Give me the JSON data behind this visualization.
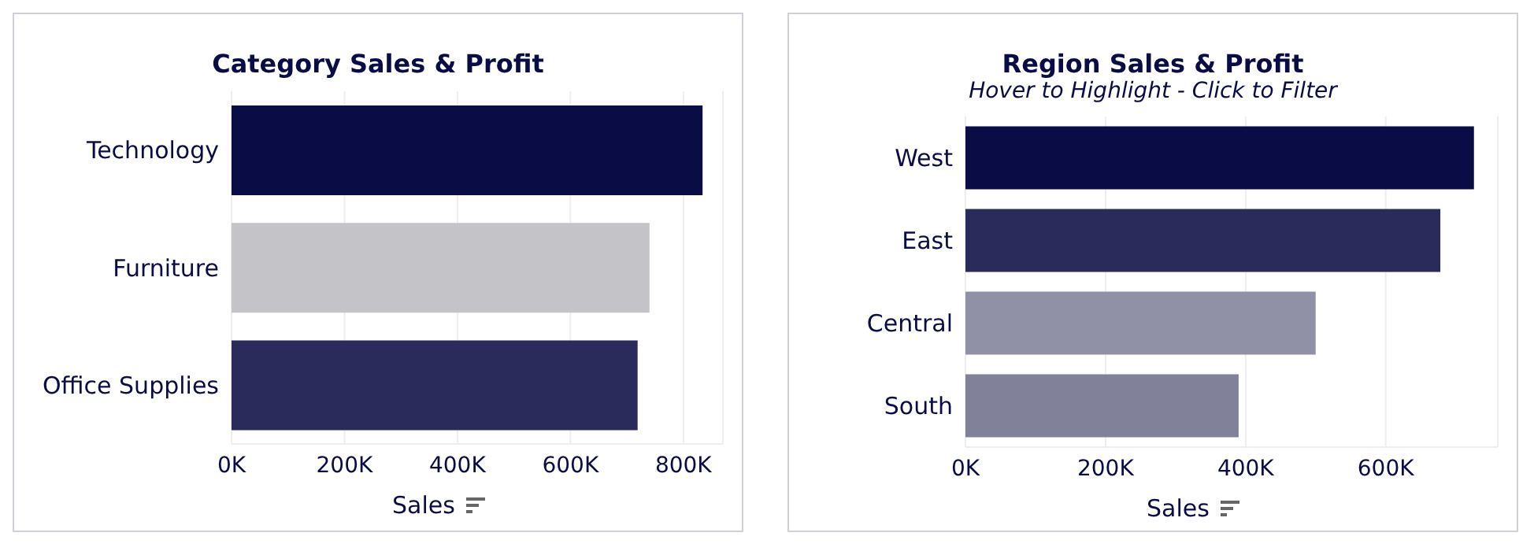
{
  "chart_data": [
    {
      "type": "bar",
      "orientation": "horizontal",
      "title": "Category Sales & Profit",
      "xlabel": "Sales",
      "categories": [
        "Technology",
        "Furniture",
        "Office Supplies"
      ],
      "values": [
        834000,
        740000,
        719000
      ],
      "colors": [
        "#0a0c45",
        "#c3c3c8",
        "#2b2b5b"
      ],
      "xlim": [
        0,
        870000
      ],
      "xticks": [
        {
          "value": 0,
          "label": "0K"
        },
        {
          "value": 200000,
          "label": "200K"
        },
        {
          "value": 400000,
          "label": "400K"
        },
        {
          "value": 600000,
          "label": "600K"
        },
        {
          "value": 800000,
          "label": "800K"
        }
      ],
      "grid": "x"
    },
    {
      "type": "bar",
      "orientation": "horizontal",
      "title": "Region Sales & Profit",
      "subtitle": "Hover to Highlight  -  Click to Filter",
      "xlabel": "Sales",
      "categories": [
        "West",
        "East",
        "Central",
        "South"
      ],
      "values": [
        726000,
        678000,
        500000,
        390000
      ],
      "colors": [
        "#0a0c45",
        "#2b2b5b",
        "#9091a6",
        "#818199"
      ],
      "xlim": [
        0,
        760000
      ],
      "xticks": [
        {
          "value": 0,
          "label": "0K"
        },
        {
          "value": 200000,
          "label": "200K"
        },
        {
          "value": 400000,
          "label": "400K"
        },
        {
          "value": 600000,
          "label": "600K"
        }
      ],
      "grid": "x"
    }
  ]
}
